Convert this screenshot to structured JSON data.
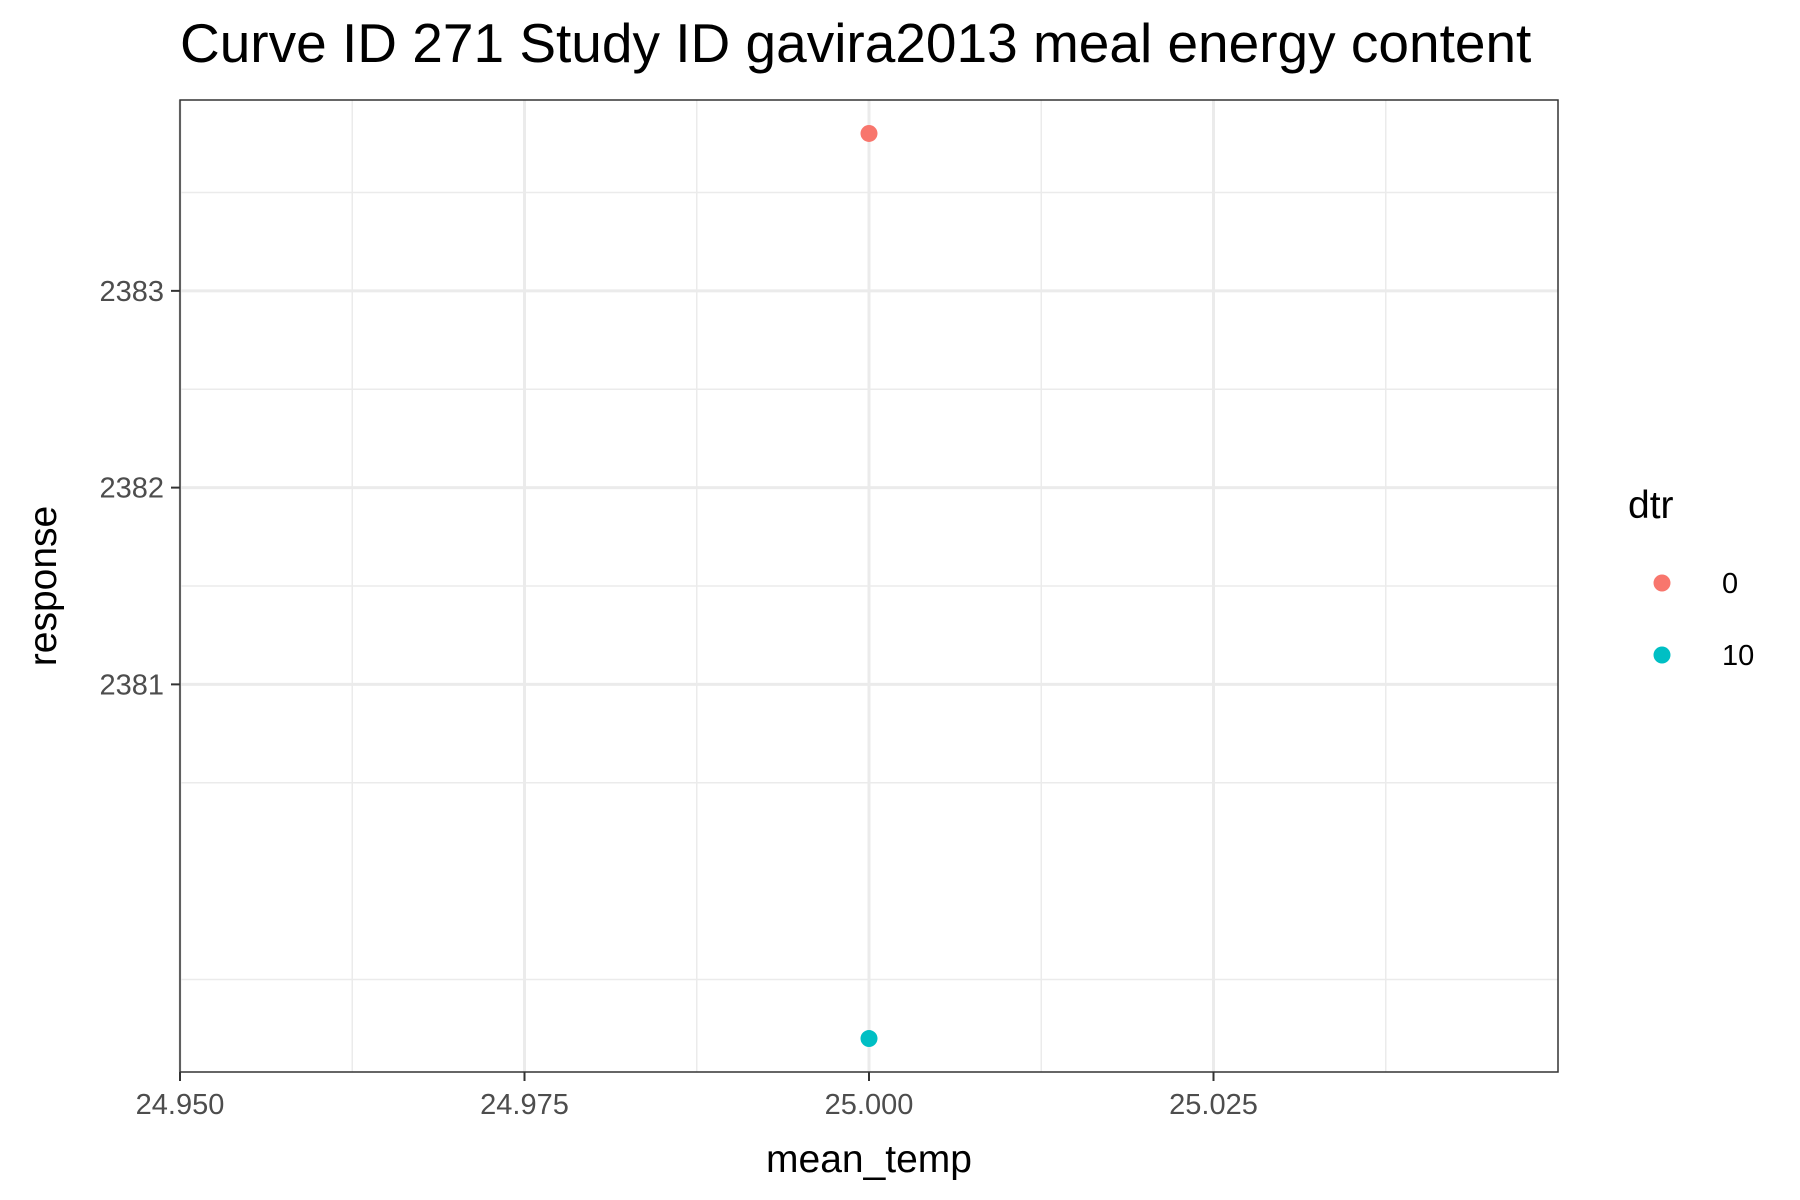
{
  "chart_data": {
    "type": "scatter",
    "title": "Curve ID 271 Study ID gavira2013 meal energy content",
    "xlabel": "mean_temp",
    "ylabel": "response",
    "xlim": [
      24.95,
      25.05
    ],
    "ylim": [
      2379.03,
      2383.97
    ],
    "x_ticks": [
      24.95,
      24.975,
      25.0,
      25.025
    ],
    "x_tick_labels": [
      "24.950",
      "24.975",
      "25.000",
      "25.025"
    ],
    "x_minor_ticks": [
      24.9625,
      24.9875,
      25.0125,
      25.0375
    ],
    "y_ticks": [
      2381,
      2382,
      2383
    ],
    "y_tick_labels": [
      "2381",
      "2382",
      "2383"
    ],
    "y_minor_ticks": [
      2379.5,
      2380.5,
      2381.5,
      2382.5,
      2383.5
    ],
    "grid": true,
    "legend": {
      "title": "dtr",
      "placement": "right",
      "entries": [
        {
          "label": "0",
          "color": "#F8766D"
        },
        {
          "label": "10",
          "color": "#00BFC4"
        }
      ]
    },
    "series": [
      {
        "name": "0",
        "color": "#F8766D",
        "points": [
          {
            "x": 25.0,
            "y": 2383.8
          }
        ]
      },
      {
        "name": "10",
        "color": "#00BFC4",
        "points": [
          {
            "x": 25.0,
            "y": 2379.2
          }
        ]
      }
    ]
  }
}
